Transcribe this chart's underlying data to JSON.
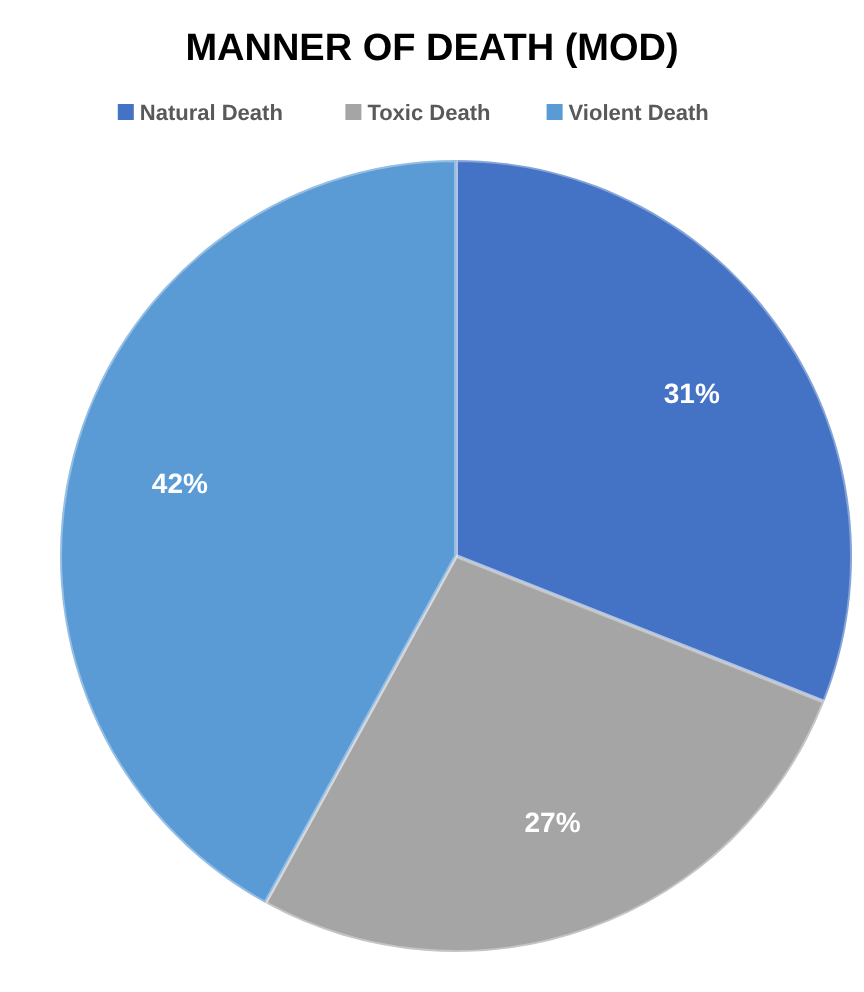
{
  "chart_data": {
    "type": "pie",
    "title": "MANNER OF DEATH (MOD)",
    "categories": [
      "Natural Death",
      "Toxic Death",
      "Violent Death"
    ],
    "values": [
      31,
      27,
      42
    ],
    "colors": [
      "#4472c4",
      "#a5a5a5",
      "#5b9bd5"
    ],
    "value_labels": [
      "31%",
      "27%",
      "42%"
    ],
    "legend": "top"
  }
}
